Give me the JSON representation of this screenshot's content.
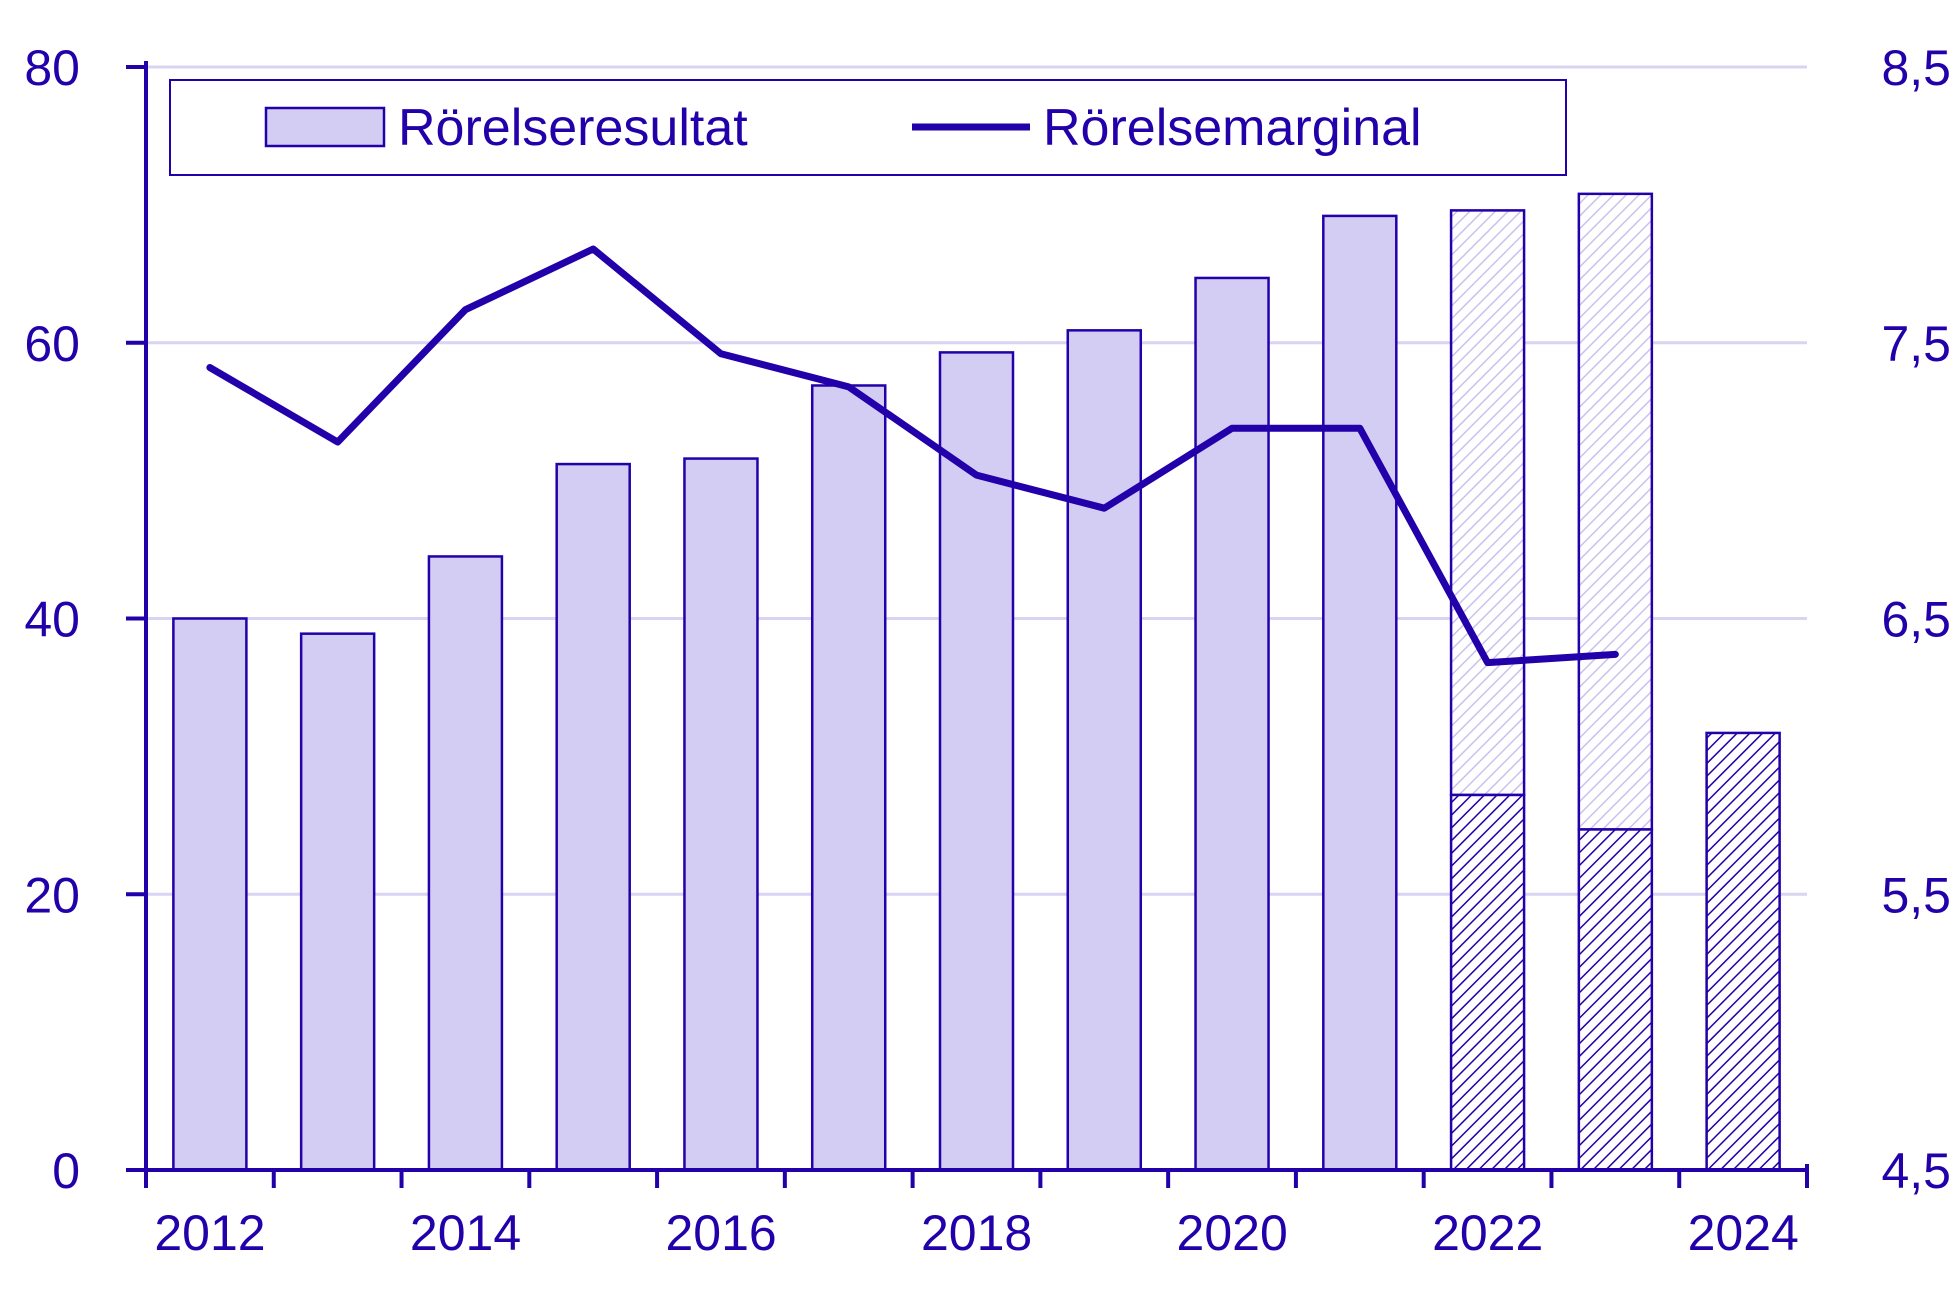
{
  "colors": {
    "ink": "#2200aa",
    "bar_fill": "#d3cdf3",
    "grid": "#d8d4f2",
    "hatch_light": "#c9c2ee",
    "hatch_dark": "#2200aa"
  },
  "chart_data": {
    "type": "bar",
    "title": "",
    "xlabel": "",
    "ylabel": "",
    "x_tick_labels": [
      "2012",
      "2014",
      "2016",
      "2018",
      "2020",
      "2022",
      "2024"
    ],
    "y_left_tick_labels": [
      "0",
      "20",
      "40",
      "60",
      "80"
    ],
    "y_right_tick_labels": [
      "4,5",
      "5,5",
      "6,5",
      "7,5",
      "8,5"
    ],
    "ylim_left": [
      0,
      80
    ],
    "ylim_right": [
      4.5,
      8.5
    ],
    "grid": true,
    "legend_position": "top",
    "categories": [
      "2012",
      "2013",
      "2014",
      "2015",
      "2016",
      "2017",
      "2018",
      "2019",
      "2020",
      "2021",
      "2022",
      "2023",
      "2024"
    ],
    "series": [
      {
        "name": "Rörelseresultat",
        "type": "bar",
        "axis": "left",
        "values": [
          40.0,
          38.9,
          44.5,
          51.2,
          51.6,
          56.9,
          59.3,
          60.9,
          64.7,
          69.2,
          69.6,
          70.8,
          31.7
        ],
        "hatched_lower_portion": [
          null,
          null,
          null,
          null,
          null,
          null,
          null,
          null,
          null,
          null,
          27.2,
          24.7,
          31.7
        ]
      },
      {
        "name": "Rörelsemarginal",
        "type": "line",
        "axis": "right",
        "values": [
          7.41,
          7.14,
          7.62,
          7.84,
          7.46,
          7.34,
          7.02,
          6.9,
          7.19,
          7.19,
          6.34,
          6.37,
          null
        ]
      }
    ]
  }
}
